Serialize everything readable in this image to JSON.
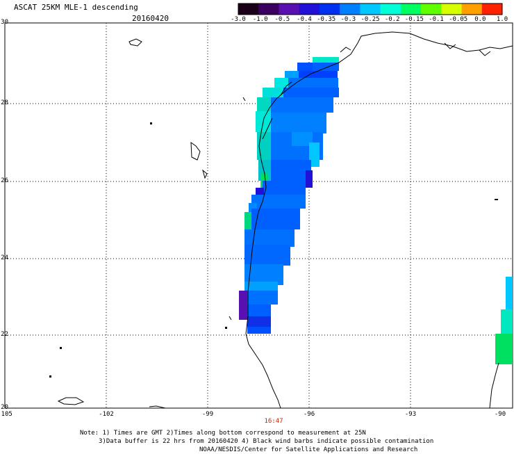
{
  "title": "ASCAT 25KM MLE-1 descending",
  "date": "20160420",
  "time_label": "16:47",
  "colorbar": {
    "labels": [
      "-3.0",
      "-1.0",
      "-0.5",
      "-0.4",
      "-0.35",
      "-0.3",
      "-0.25",
      "-0.2",
      "-0.15",
      "-0.1",
      "-0.05",
      "0.0",
      "1.0"
    ],
    "colors": [
      "#1a0018",
      "#3c0060",
      "#5a10b0",
      "#2010d8",
      "#0030f0",
      "#0080ff",
      "#00c8ff",
      "#00ffd8",
      "#00ff60",
      "#60ff00",
      "#d8ff00",
      "#ffa000",
      "#ff2000"
    ]
  },
  "axes": {
    "lat_labels": [
      "30",
      "28",
      "26",
      "24",
      "22",
      "20"
    ],
    "lon_labels": [
      "-105",
      "-102",
      "-99",
      "-96",
      "-93",
      "-90"
    ]
  },
  "notes": {
    "line1": "Note: 1) Times are GMT 2)Times along bottom correspond to measurement at 25N",
    "line2": "3)Data buffer is 22 hrs from 20160420 4) Black wind barbs indicate possible contamination",
    "line3": "NOAA/NESDIS/Center for Satellite Applications and Research"
  }
}
